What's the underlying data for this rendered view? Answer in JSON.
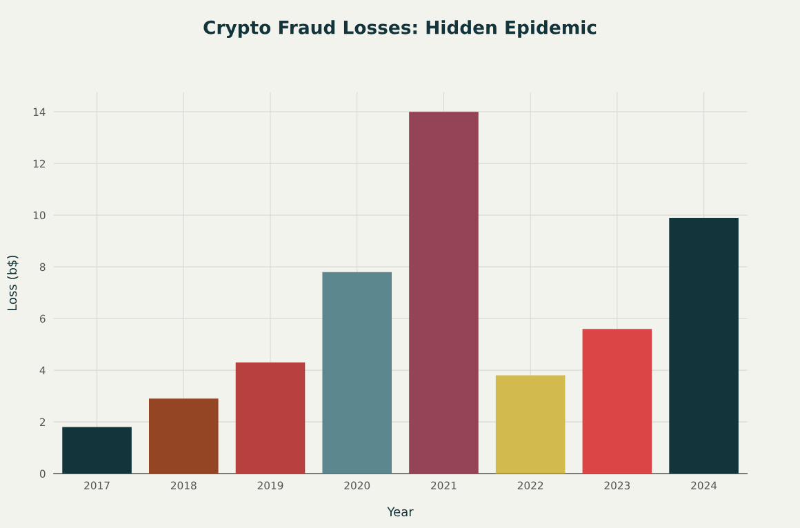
{
  "chart_data": {
    "type": "bar",
    "title": "Crypto Fraud Losses: Hidden Epidemic",
    "xlabel": "Year",
    "ylabel": "Loss (b$)",
    "categories": [
      "2017",
      "2018",
      "2019",
      "2020",
      "2021",
      "2022",
      "2023",
      "2024"
    ],
    "values": [
      1.8,
      2.9,
      4.3,
      7.8,
      14,
      3.8,
      5.6,
      9.9
    ],
    "colors": [
      "#13343b",
      "#944524",
      "#b8403e",
      "#5d878f",
      "#944454",
      "#d2ba4c",
      "#db4545",
      "#13343b"
    ],
    "ylim": [
      0,
      14.75
    ],
    "yticks": [
      0,
      2,
      4,
      6,
      8,
      10,
      12,
      14
    ],
    "grid": true
  }
}
